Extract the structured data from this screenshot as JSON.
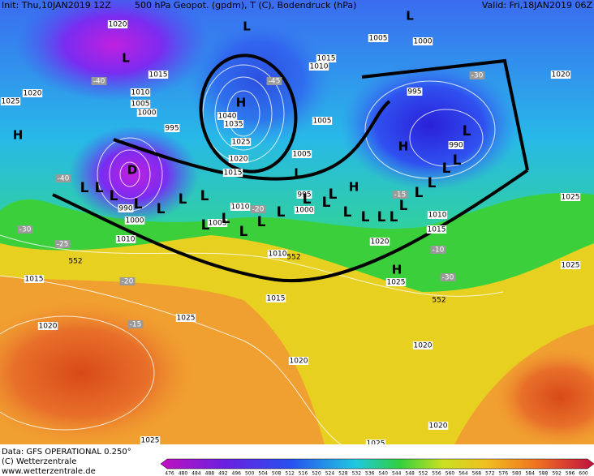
{
  "header": {
    "init": "Init: Thu,10JAN2019 12Z",
    "field": "500 hPa Geopot. (gpdm), T (C), Bodendruck (hPa)",
    "valid": "Valid: Fri,18JAN2019 06Z"
  },
  "footer": {
    "data": "Data: GFS OPERATIONAL 0.250°",
    "copyright": "(C) Wetterzentrale",
    "url": "www.wetterzentrale.de"
  },
  "colorbar_ticks": [
    "476",
    "480",
    "484",
    "488",
    "492",
    "496",
    "500",
    "504",
    "508",
    "512",
    "516",
    "520",
    "524",
    "528",
    "532",
    "536",
    "540",
    "544",
    "548",
    "552",
    "556",
    "560",
    "564",
    "568",
    "572",
    "576",
    "580",
    "584",
    "588",
    "592",
    "596",
    "600"
  ],
  "pressure_labels": [
    "1020",
    "1005",
    "1000",
    "1015",
    "1025",
    "1020",
    "1010",
    "1005",
    "1000",
    "995",
    "1040",
    "1035",
    "1025",
    "1020",
    "1015",
    "1015",
    "1010",
    "995",
    "1005",
    "1005",
    "995",
    "1000",
    "990",
    "1020",
    "1010",
    "1005",
    "1000",
    "990",
    "1010",
    "1015",
    "1010",
    "1020",
    "1015",
    "1010",
    "1025",
    "1025",
    "1025",
    "1015",
    "1025",
    "1020",
    "1020",
    "1020",
    "1020",
    "1025",
    "1025"
  ],
  "temperature_labels": [
    "-40",
    "-45",
    "-30",
    "-40",
    "-20",
    "-30",
    "-25",
    "-20",
    "-15",
    "-15",
    "-10",
    "-30"
  ],
  "height_labels": [
    "552",
    "552",
    "552"
  ],
  "pressure_centers": [
    "H",
    "L",
    "L",
    "H",
    "H",
    "H",
    "H",
    "D",
    "L",
    "L"
  ],
  "trough_marks": [
    "L",
    "L",
    "L",
    "L",
    "L",
    "L",
    "L",
    "L",
    "L",
    "L",
    "L",
    "L",
    "L",
    "L",
    "L",
    "L",
    "L",
    "L",
    "L",
    "L",
    "L",
    "L",
    "L",
    "L",
    "L"
  ]
}
